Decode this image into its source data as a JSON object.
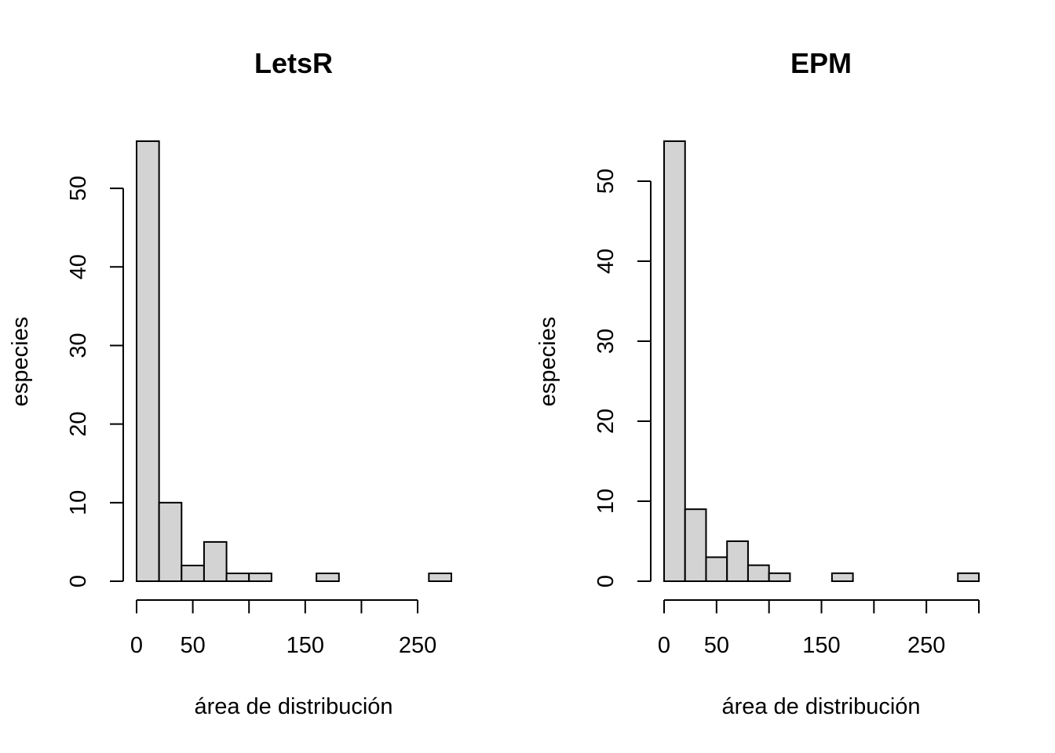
{
  "bar_fill": "#d3d3d3",
  "bar_stroke": "#000000",
  "chart_data": [
    {
      "type": "bar",
      "title": "LetsR",
      "xlabel": "área de distribución",
      "ylabel": "especies",
      "bin_width": 20,
      "bins": [
        {
          "x0": 0,
          "x1": 20,
          "count": 56
        },
        {
          "x0": 20,
          "x1": 40,
          "count": 10
        },
        {
          "x0": 40,
          "x1": 60,
          "count": 2
        },
        {
          "x0": 60,
          "x1": 80,
          "count": 5
        },
        {
          "x0": 80,
          "x1": 100,
          "count": 1
        },
        {
          "x0": 100,
          "x1": 120,
          "count": 1
        },
        {
          "x0": 120,
          "x1": 140,
          "count": 0
        },
        {
          "x0": 140,
          "x1": 160,
          "count": 0
        },
        {
          "x0": 160,
          "x1": 180,
          "count": 1
        },
        {
          "x0": 180,
          "x1": 200,
          "count": 0
        },
        {
          "x0": 200,
          "x1": 220,
          "count": 0
        },
        {
          "x0": 220,
          "x1": 240,
          "count": 0
        },
        {
          "x0": 240,
          "x1": 260,
          "count": 0
        },
        {
          "x0": 260,
          "x1": 280,
          "count": 1
        }
      ],
      "xlim": [
        0,
        280
      ],
      "ylim": [
        0,
        56
      ],
      "xticks": [
        0,
        50,
        100,
        150,
        200,
        250
      ],
      "xtick_labels": [
        "0",
        "50",
        "",
        "150",
        "",
        "250"
      ],
      "yticks": [
        0,
        10,
        20,
        30,
        40,
        50
      ],
      "ytick_labels": [
        "0",
        "10",
        "20",
        "30",
        "40",
        "50"
      ],
      "grid": false
    },
    {
      "type": "bar",
      "title": "EPM",
      "xlabel": "área de distribución",
      "ylabel": "especies",
      "bin_width": 20,
      "bins": [
        {
          "x0": 0,
          "x1": 20,
          "count": 55
        },
        {
          "x0": 20,
          "x1": 40,
          "count": 9
        },
        {
          "x0": 40,
          "x1": 60,
          "count": 3
        },
        {
          "x0": 60,
          "x1": 80,
          "count": 5
        },
        {
          "x0": 80,
          "x1": 100,
          "count": 2
        },
        {
          "x0": 100,
          "x1": 120,
          "count": 1
        },
        {
          "x0": 120,
          "x1": 140,
          "count": 0
        },
        {
          "x0": 140,
          "x1": 160,
          "count": 0
        },
        {
          "x0": 160,
          "x1": 180,
          "count": 1
        },
        {
          "x0": 180,
          "x1": 200,
          "count": 0
        },
        {
          "x0": 200,
          "x1": 220,
          "count": 0
        },
        {
          "x0": 220,
          "x1": 240,
          "count": 0
        },
        {
          "x0": 240,
          "x1": 260,
          "count": 0
        },
        {
          "x0": 260,
          "x1": 280,
          "count": 0
        },
        {
          "x0": 280,
          "x1": 300,
          "count": 1
        }
      ],
      "xlim": [
        0,
        300
      ],
      "ylim": [
        0,
        55
      ],
      "xticks": [
        0,
        50,
        100,
        150,
        200,
        250,
        300
      ],
      "xtick_labels": [
        "0",
        "50",
        "",
        "150",
        "",
        "250",
        ""
      ],
      "yticks": [
        0,
        10,
        20,
        30,
        40,
        50
      ],
      "ytick_labels": [
        "0",
        "10",
        "20",
        "30",
        "40",
        "50"
      ],
      "grid": false
    }
  ]
}
